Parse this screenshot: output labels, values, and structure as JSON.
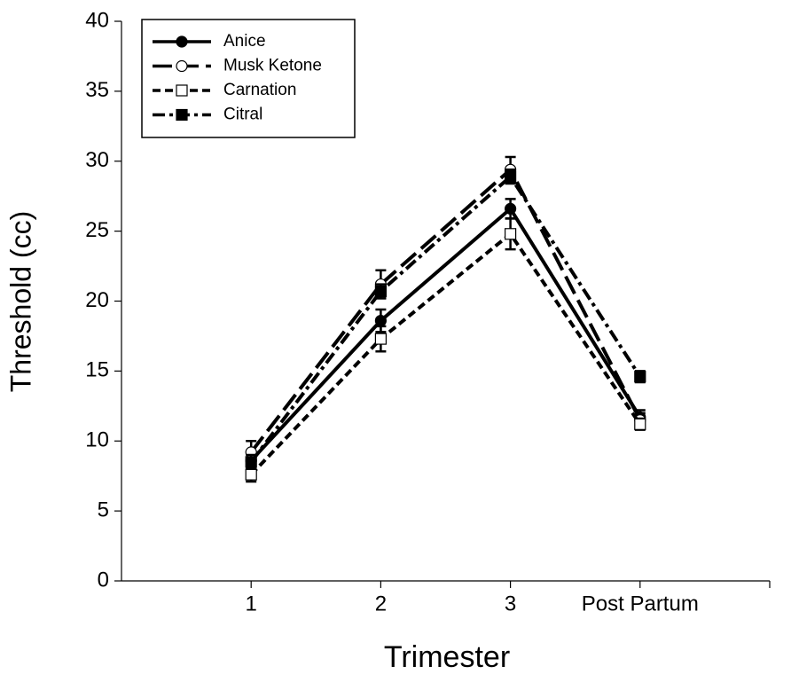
{
  "chart_data": {
    "type": "line",
    "x_label": "Trimester",
    "y_label": "Threshold (cc)",
    "categories": [
      "1",
      "2",
      "3",
      "Post Partum"
    ],
    "ylim": [
      0,
      40
    ],
    "yticks": [
      0,
      5,
      10,
      15,
      20,
      25,
      30,
      35,
      40
    ],
    "legend": "top-left",
    "series": [
      {
        "name": "Anice",
        "color": "#000000",
        "dash": "solid",
        "marker": "circle-filled",
        "values": [
          8.6,
          18.6,
          26.6,
          11.7
        ],
        "errors": [
          0.7,
          0.8,
          0.7,
          0.5
        ]
      },
      {
        "name": "Musk Ketone",
        "color": "#000000",
        "dash": "long-dash",
        "marker": "circle-open",
        "values": [
          9.2,
          21.2,
          29.4,
          11.5
        ],
        "errors": [
          0.8,
          1.0,
          0.9,
          0.5
        ]
      },
      {
        "name": "Carnation",
        "color": "#000000",
        "dash": "short-dash",
        "marker": "square-open",
        "values": [
          7.6,
          17.3,
          24.8,
          11.2
        ],
        "errors": [
          0.5,
          0.9,
          1.1,
          0.4
        ]
      },
      {
        "name": "Citral",
        "color": "#000000",
        "dash": "dash-dot",
        "marker": "square-filled",
        "values": [
          8.5,
          20.7,
          28.9,
          14.6
        ],
        "errors": [
          0.5,
          0.5,
          0.5,
          0.4
        ]
      }
    ]
  }
}
